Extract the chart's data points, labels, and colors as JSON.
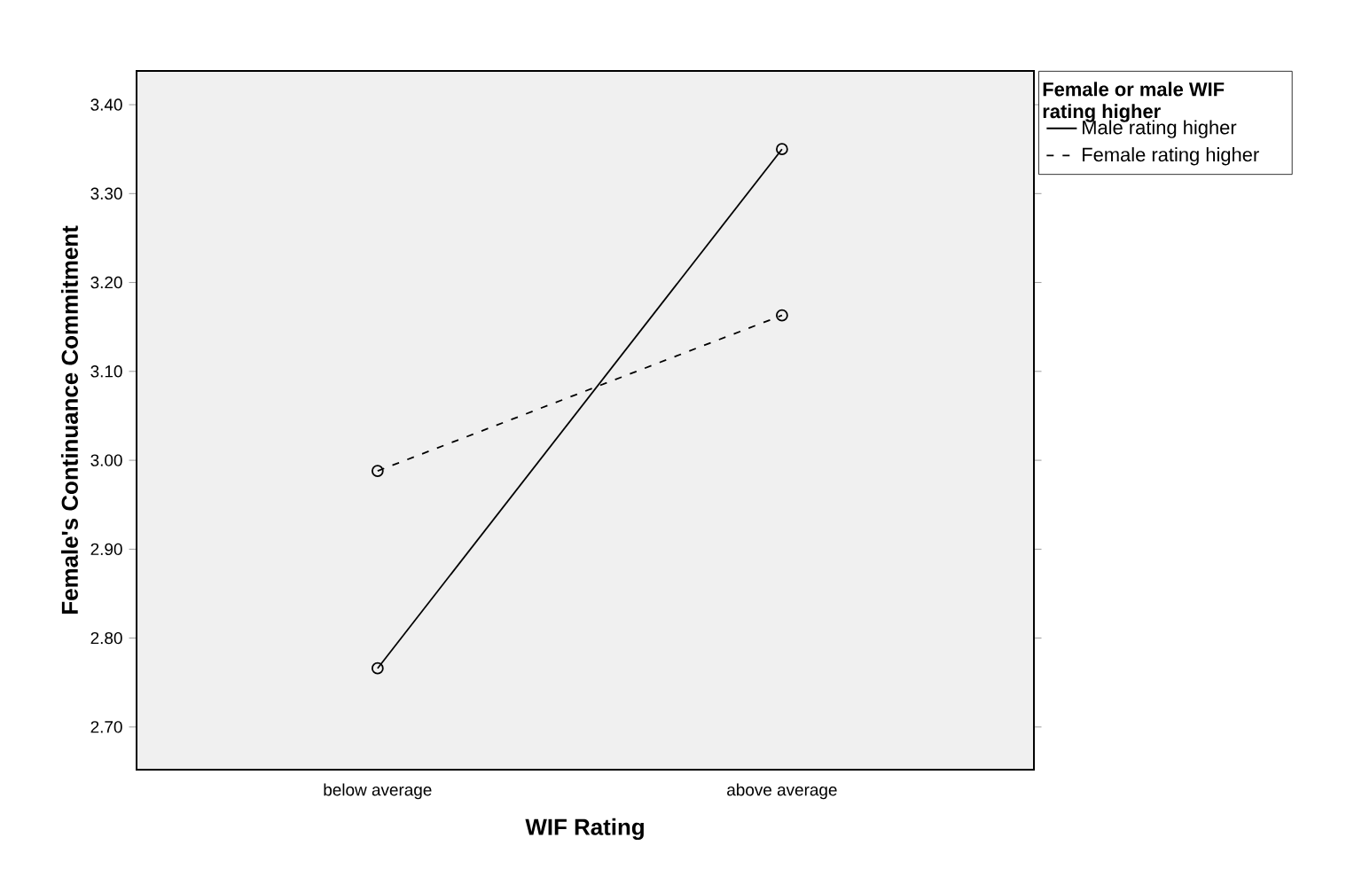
{
  "chart_data": {
    "type": "line",
    "xlabel": "WIF Rating",
    "ylabel": "Female's Continuance Commitment",
    "legend_title": "Female or male WIF rating higher",
    "categories": [
      "below average",
      "above average"
    ],
    "ylim": [
      2.652,
      3.438
    ],
    "yticks": [
      {
        "value": 2.7,
        "label": "2.70"
      },
      {
        "value": 2.8,
        "label": "2.80"
      },
      {
        "value": 2.9,
        "label": "2.90"
      },
      {
        "value": 3.0,
        "label": "3.00"
      },
      {
        "value": 3.1,
        "label": "3.10"
      },
      {
        "value": 3.2,
        "label": "3.20"
      },
      {
        "value": 3.3,
        "label": "3.30"
      },
      {
        "value": 3.4,
        "label": "3.40"
      }
    ],
    "marker": "circle",
    "legend": "top right",
    "grid": false,
    "series": [
      {
        "name": "Male rating higher",
        "color": "#000000",
        "line_style": "solid",
        "values": [
          2.766,
          3.35
        ]
      },
      {
        "name": "Female rating higher",
        "color": "#000000",
        "line_style": "dashed",
        "values": [
          2.988,
          3.163
        ]
      }
    ]
  }
}
